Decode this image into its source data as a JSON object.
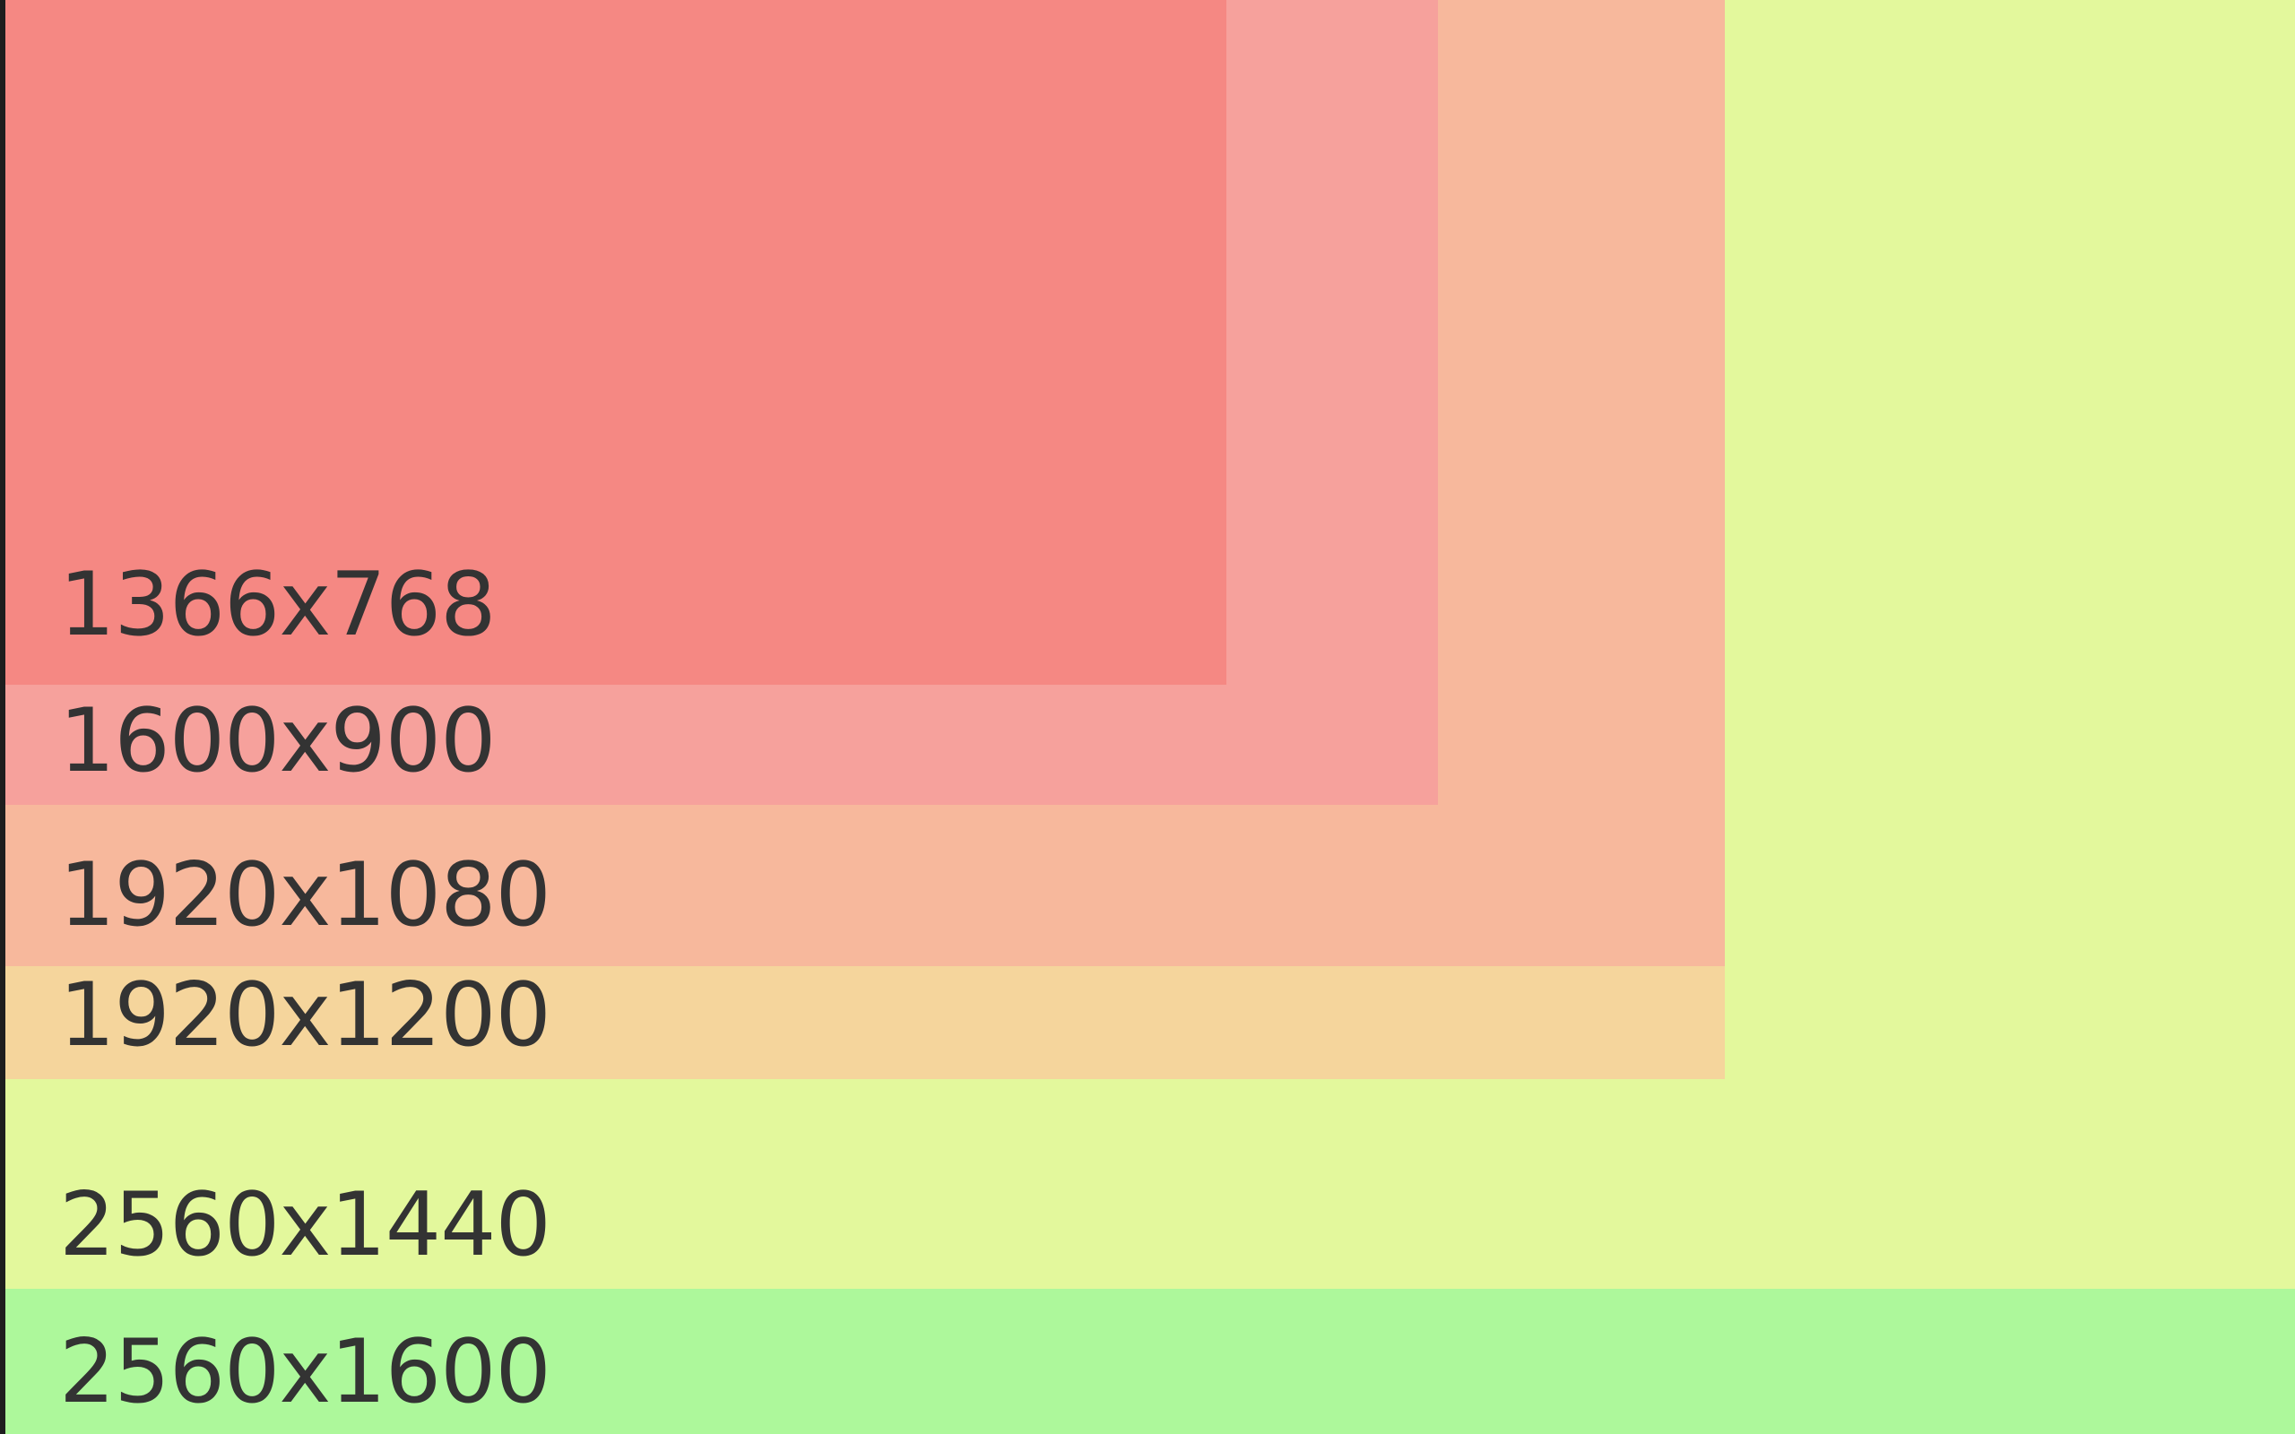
{
  "resolutions": [
    {
      "label": "1366x768",
      "color": "#f58883"
    },
    {
      "label": "1600x900",
      "color": "#f6a19c"
    },
    {
      "label": "1920x1080",
      "color": "#f7b89c"
    },
    {
      "label": "1920x1200",
      "color": "#f5d59c"
    },
    {
      "label": "2560x1440",
      "color": "#e3f89c"
    },
    {
      "label": "2560x1600",
      "color": "#adf89b"
    }
  ]
}
